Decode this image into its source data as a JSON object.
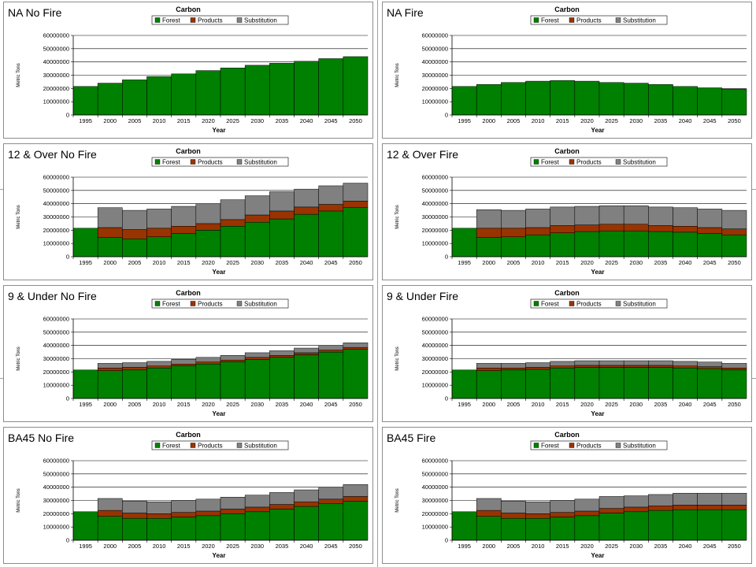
{
  "colors": {
    "forest": "#008000",
    "products": "#993300",
    "substitution": "#808080"
  },
  "chart_data": [
    {
      "panel_label": "NA No Fire",
      "type": "bar",
      "stacked": true,
      "title": "Carbon",
      "xlabel": "Year",
      "ylabel": "Metric Tons",
      "ylim": [
        0,
        60000000
      ],
      "legend": "top",
      "yticks": [
        "0",
        "10000000",
        "20000000",
        "30000000",
        "40000000",
        "50000000",
        "60000000"
      ],
      "categories": [
        "1995",
        "2000",
        "2005",
        "2010",
        "2015",
        "2020",
        "2025",
        "2030",
        "2035",
        "2040",
        "2045",
        "2050"
      ],
      "series": [
        {
          "name": "Forest",
          "values": [
            21500000,
            24000000,
            26500000,
            29000000,
            31000000,
            33500000,
            35500000,
            37500000,
            39000000,
            40500000,
            42500000,
            44000000
          ]
        },
        {
          "name": "Products",
          "values": [
            0,
            0,
            0,
            0,
            0,
            0,
            0,
            0,
            0,
            0,
            0,
            0
          ]
        },
        {
          "name": "Substitution",
          "values": [
            0,
            0,
            0,
            0,
            0,
            0,
            0,
            0,
            0,
            0,
            0,
            0
          ]
        }
      ]
    },
    {
      "panel_label": "NA Fire",
      "type": "bar",
      "stacked": true,
      "title": "Carbon",
      "xlabel": "Year",
      "ylabel": "Metric Tons",
      "ylim": [
        0,
        60000000
      ],
      "legend": "top",
      "yticks": [
        "0",
        "10000000",
        "20000000",
        "30000000",
        "40000000",
        "50000000",
        "60000000"
      ],
      "categories": [
        "1995",
        "2000",
        "2005",
        "2010",
        "2015",
        "2020",
        "2025",
        "2030",
        "2035",
        "2040",
        "2045",
        "2050"
      ],
      "series": [
        {
          "name": "Forest",
          "values": [
            21500000,
            23000000,
            24500000,
            25500000,
            26000000,
            25500000,
            24500000,
            24000000,
            23000000,
            21500000,
            20500000,
            19500000
          ]
        },
        {
          "name": "Products",
          "values": [
            0,
            0,
            0,
            0,
            0,
            0,
            0,
            0,
            0,
            0,
            0,
            0
          ]
        },
        {
          "name": "Substitution",
          "values": [
            0,
            0,
            0,
            0,
            0,
            0,
            0,
            0,
            0,
            0,
            0,
            0
          ]
        }
      ]
    },
    {
      "panel_label": "12 & Over No Fire",
      "type": "bar",
      "stacked": true,
      "title": "Carbon",
      "xlabel": "Year",
      "ylabel": "Metric Tons",
      "ylim": [
        0,
        60000000
      ],
      "legend": "top",
      "yticks": [
        "0",
        "10000000",
        "20000000",
        "30000000",
        "40000000",
        "50000000",
        "60000000"
      ],
      "categories": [
        "1995",
        "2000",
        "2005",
        "2010",
        "2015",
        "2020",
        "2025",
        "2030",
        "2035",
        "2040",
        "2045",
        "2050"
      ],
      "series": [
        {
          "name": "Forest",
          "values": [
            21500000,
            14500000,
            13500000,
            15000000,
            17500000,
            20000000,
            23000000,
            26000000,
            28500000,
            32000000,
            34500000,
            37000000
          ]
        },
        {
          "name": "Products",
          "values": [
            0,
            7500000,
            7000000,
            6500000,
            5500000,
            5000000,
            5000000,
            5500000,
            6000000,
            5500000,
            5000000,
            5000000
          ]
        },
        {
          "name": "Substitution",
          "values": [
            0,
            15000000,
            14500000,
            14500000,
            15000000,
            15000000,
            15000000,
            14500000,
            14500000,
            13500000,
            14000000,
            13500000
          ]
        }
      ]
    },
    {
      "panel_label": "12 & Over Fire",
      "type": "bar",
      "stacked": true,
      "title": "Carbon",
      "xlabel": "Year",
      "ylabel": "Metric Tons",
      "ylim": [
        0,
        60000000
      ],
      "legend": "top",
      "yticks": [
        "0",
        "10000000",
        "20000000",
        "30000000",
        "40000000",
        "50000000",
        "60000000"
      ],
      "categories": [
        "1995",
        "2000",
        "2005",
        "2010",
        "2015",
        "2020",
        "2025",
        "2030",
        "2035",
        "2040",
        "2045",
        "2050"
      ],
      "series": [
        {
          "name": "Forest",
          "values": [
            21500000,
            14500000,
            15000000,
            16500000,
            18000000,
            19000000,
            19500000,
            19500000,
            19000000,
            18500000,
            17500000,
            16500000
          ]
        },
        {
          "name": "Products",
          "values": [
            0,
            7000000,
            6500000,
            5500000,
            5500000,
            5000000,
            5000000,
            5000000,
            4500000,
            4500000,
            4500000,
            4500000
          ]
        },
        {
          "name": "Substitution",
          "values": [
            0,
            14000000,
            13500000,
            14000000,
            14000000,
            14000000,
            14000000,
            14000000,
            14000000,
            14000000,
            14000000,
            14000000
          ]
        }
      ]
    },
    {
      "panel_label": "9 & Under No Fire",
      "type": "bar",
      "stacked": true,
      "title": "Carbon",
      "xlabel": "Year",
      "ylabel": "Metric Tons",
      "ylim": [
        0,
        60000000
      ],
      "legend": "top",
      "yticks": [
        "0",
        "10000000",
        "20000000",
        "30000000",
        "40000000",
        "50000000",
        "60000000"
      ],
      "categories": [
        "1995",
        "2000",
        "2005",
        "2010",
        "2015",
        "2020",
        "2025",
        "2030",
        "2035",
        "2040",
        "2045",
        "2050"
      ],
      "series": [
        {
          "name": "Forest",
          "values": [
            21500000,
            21000000,
            21500000,
            23000000,
            24500000,
            26000000,
            27500000,
            29500000,
            31000000,
            33000000,
            35000000,
            37000000
          ]
        },
        {
          "name": "Products",
          "values": [
            0,
            2000000,
            2000000,
            1500000,
            1500000,
            1500000,
            1500000,
            1500000,
            1500000,
            1500000,
            1500000,
            1500000
          ]
        },
        {
          "name": "Substitution",
          "values": [
            0,
            3500000,
            3500000,
            3500000,
            3500000,
            3500000,
            3500000,
            3500000,
            3500000,
            3500000,
            3500000,
            3500000
          ]
        }
      ]
    },
    {
      "panel_label": "9 & Under Fire",
      "type": "bar",
      "stacked": true,
      "title": "Carbon",
      "xlabel": "Year",
      "ylabel": "Metric Tons",
      "ylim": [
        0,
        60000000
      ],
      "legend": "top",
      "yticks": [
        "0",
        "10000000",
        "20000000",
        "30000000",
        "40000000",
        "50000000",
        "60000000"
      ],
      "categories": [
        "1995",
        "2000",
        "2005",
        "2010",
        "2015",
        "2020",
        "2025",
        "2030",
        "2035",
        "2040",
        "2045",
        "2050"
      ],
      "series": [
        {
          "name": "Forest",
          "values": [
            21500000,
            21000000,
            21500000,
            22000000,
            23000000,
            23500000,
            23500000,
            23500000,
            23500000,
            23000000,
            22500000,
            21500000
          ]
        },
        {
          "name": "Products",
          "values": [
            0,
            2000000,
            1500000,
            1500000,
            1500000,
            1500000,
            1500000,
            1500000,
            1500000,
            1500000,
            1500000,
            1500000
          ]
        },
        {
          "name": "Substitution",
          "values": [
            0,
            3500000,
            3500000,
            3500000,
            3500000,
            3500000,
            3500000,
            3500000,
            3500000,
            3500000,
            3500000,
            3500000
          ]
        }
      ]
    },
    {
      "panel_label": "BA45 No Fire",
      "type": "bar",
      "stacked": true,
      "title": "Carbon",
      "xlabel": "Year",
      "ylabel": "Metric Tons",
      "ylim": [
        0,
        60000000
      ],
      "legend": "top",
      "yticks": [
        "0",
        "10000000",
        "20000000",
        "30000000",
        "40000000",
        "50000000",
        "60000000"
      ],
      "categories": [
        "1995",
        "2000",
        "2005",
        "2010",
        "2015",
        "2020",
        "2025",
        "2030",
        "2035",
        "2040",
        "2045",
        "2050"
      ],
      "series": [
        {
          "name": "Forest",
          "values": [
            21500000,
            18000000,
            16500000,
            16500000,
            17500000,
            18500000,
            20000000,
            21500000,
            23500000,
            25500000,
            27500000,
            29500000
          ]
        },
        {
          "name": "Products",
          "values": [
            0,
            4500000,
            4000000,
            3500000,
            3500000,
            3500000,
            3500000,
            3500000,
            3500000,
            3500000,
            3500000,
            3500000
          ]
        },
        {
          "name": "Substitution",
          "values": [
            0,
            9000000,
            9000000,
            9000000,
            9000000,
            9000000,
            9000000,
            9000000,
            9000000,
            9000000,
            9000000,
            9000000
          ]
        }
      ]
    },
    {
      "panel_label": "BA45 Fire",
      "type": "bar",
      "stacked": true,
      "title": "Carbon",
      "xlabel": "Year",
      "ylabel": "Metric Tons",
      "ylim": [
        0,
        60000000
      ],
      "legend": "top",
      "yticks": [
        "0",
        "10000000",
        "20000000",
        "30000000",
        "40000000",
        "50000000",
        "60000000"
      ],
      "categories": [
        "1995",
        "2000",
        "2005",
        "2010",
        "2015",
        "2020",
        "2025",
        "2030",
        "2035",
        "2040",
        "2045",
        "2050"
      ],
      "series": [
        {
          "name": "Forest",
          "values": [
            21500000,
            18000000,
            16500000,
            16500000,
            17500000,
            18500000,
            20500000,
            21500000,
            22500000,
            23000000,
            23000000,
            23000000
          ]
        },
        {
          "name": "Products",
          "values": [
            0,
            4500000,
            4000000,
            3500000,
            3500000,
            3500000,
            3500000,
            3500000,
            3500000,
            3500000,
            3500000,
            3500000
          ]
        },
        {
          "name": "Substitution",
          "values": [
            0,
            9000000,
            9000000,
            9000000,
            9000000,
            9000000,
            9000000,
            8500000,
            8500000,
            9000000,
            9000000,
            9000000
          ]
        }
      ]
    }
  ]
}
